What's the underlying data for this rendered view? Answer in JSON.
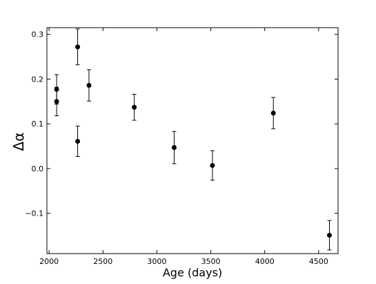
{
  "chart_data": {
    "type": "scatter",
    "title": "",
    "xlabel": "Age (days)",
    "ylabel": "Δα",
    "xlim": [
      1980,
      4680
    ],
    "ylim": [
      -0.19,
      0.315
    ],
    "xticks": [
      2000,
      2500,
      3000,
      3500,
      4000,
      4500
    ],
    "xtick_labels": [
      "2000",
      "2500",
      "3000",
      "3500",
      "4000",
      "4500"
    ],
    "yticks": [
      -0.1,
      0.0,
      0.1,
      0.2,
      0.3
    ],
    "ytick_labels": [
      "−0.1",
      "0.0",
      "0.1",
      "0.2",
      "0.3"
    ],
    "grid": false,
    "series": [
      {
        "points": [
          {
            "x": 2070,
            "y": 0.177,
            "yerr": 0.033
          },
          {
            "x": 2070,
            "y": 0.15,
            "yerr": 0.032
          },
          {
            "x": 2265,
            "y": 0.272,
            "yerr": 0.04
          },
          {
            "x": 2265,
            "y": 0.061,
            "yerr": 0.034
          },
          {
            "x": 2370,
            "y": 0.186,
            "yerr": 0.035
          },
          {
            "x": 2790,
            "y": 0.137,
            "yerr": 0.029
          },
          {
            "x": 3160,
            "y": 0.047,
            "yerr": 0.036
          },
          {
            "x": 3515,
            "y": 0.007,
            "yerr": 0.033
          },
          {
            "x": 4080,
            "y": 0.124,
            "yerr": 0.035
          },
          {
            "x": 4600,
            "y": -0.149,
            "yerr": 0.033
          }
        ],
        "color": "#000000"
      }
    ]
  }
}
